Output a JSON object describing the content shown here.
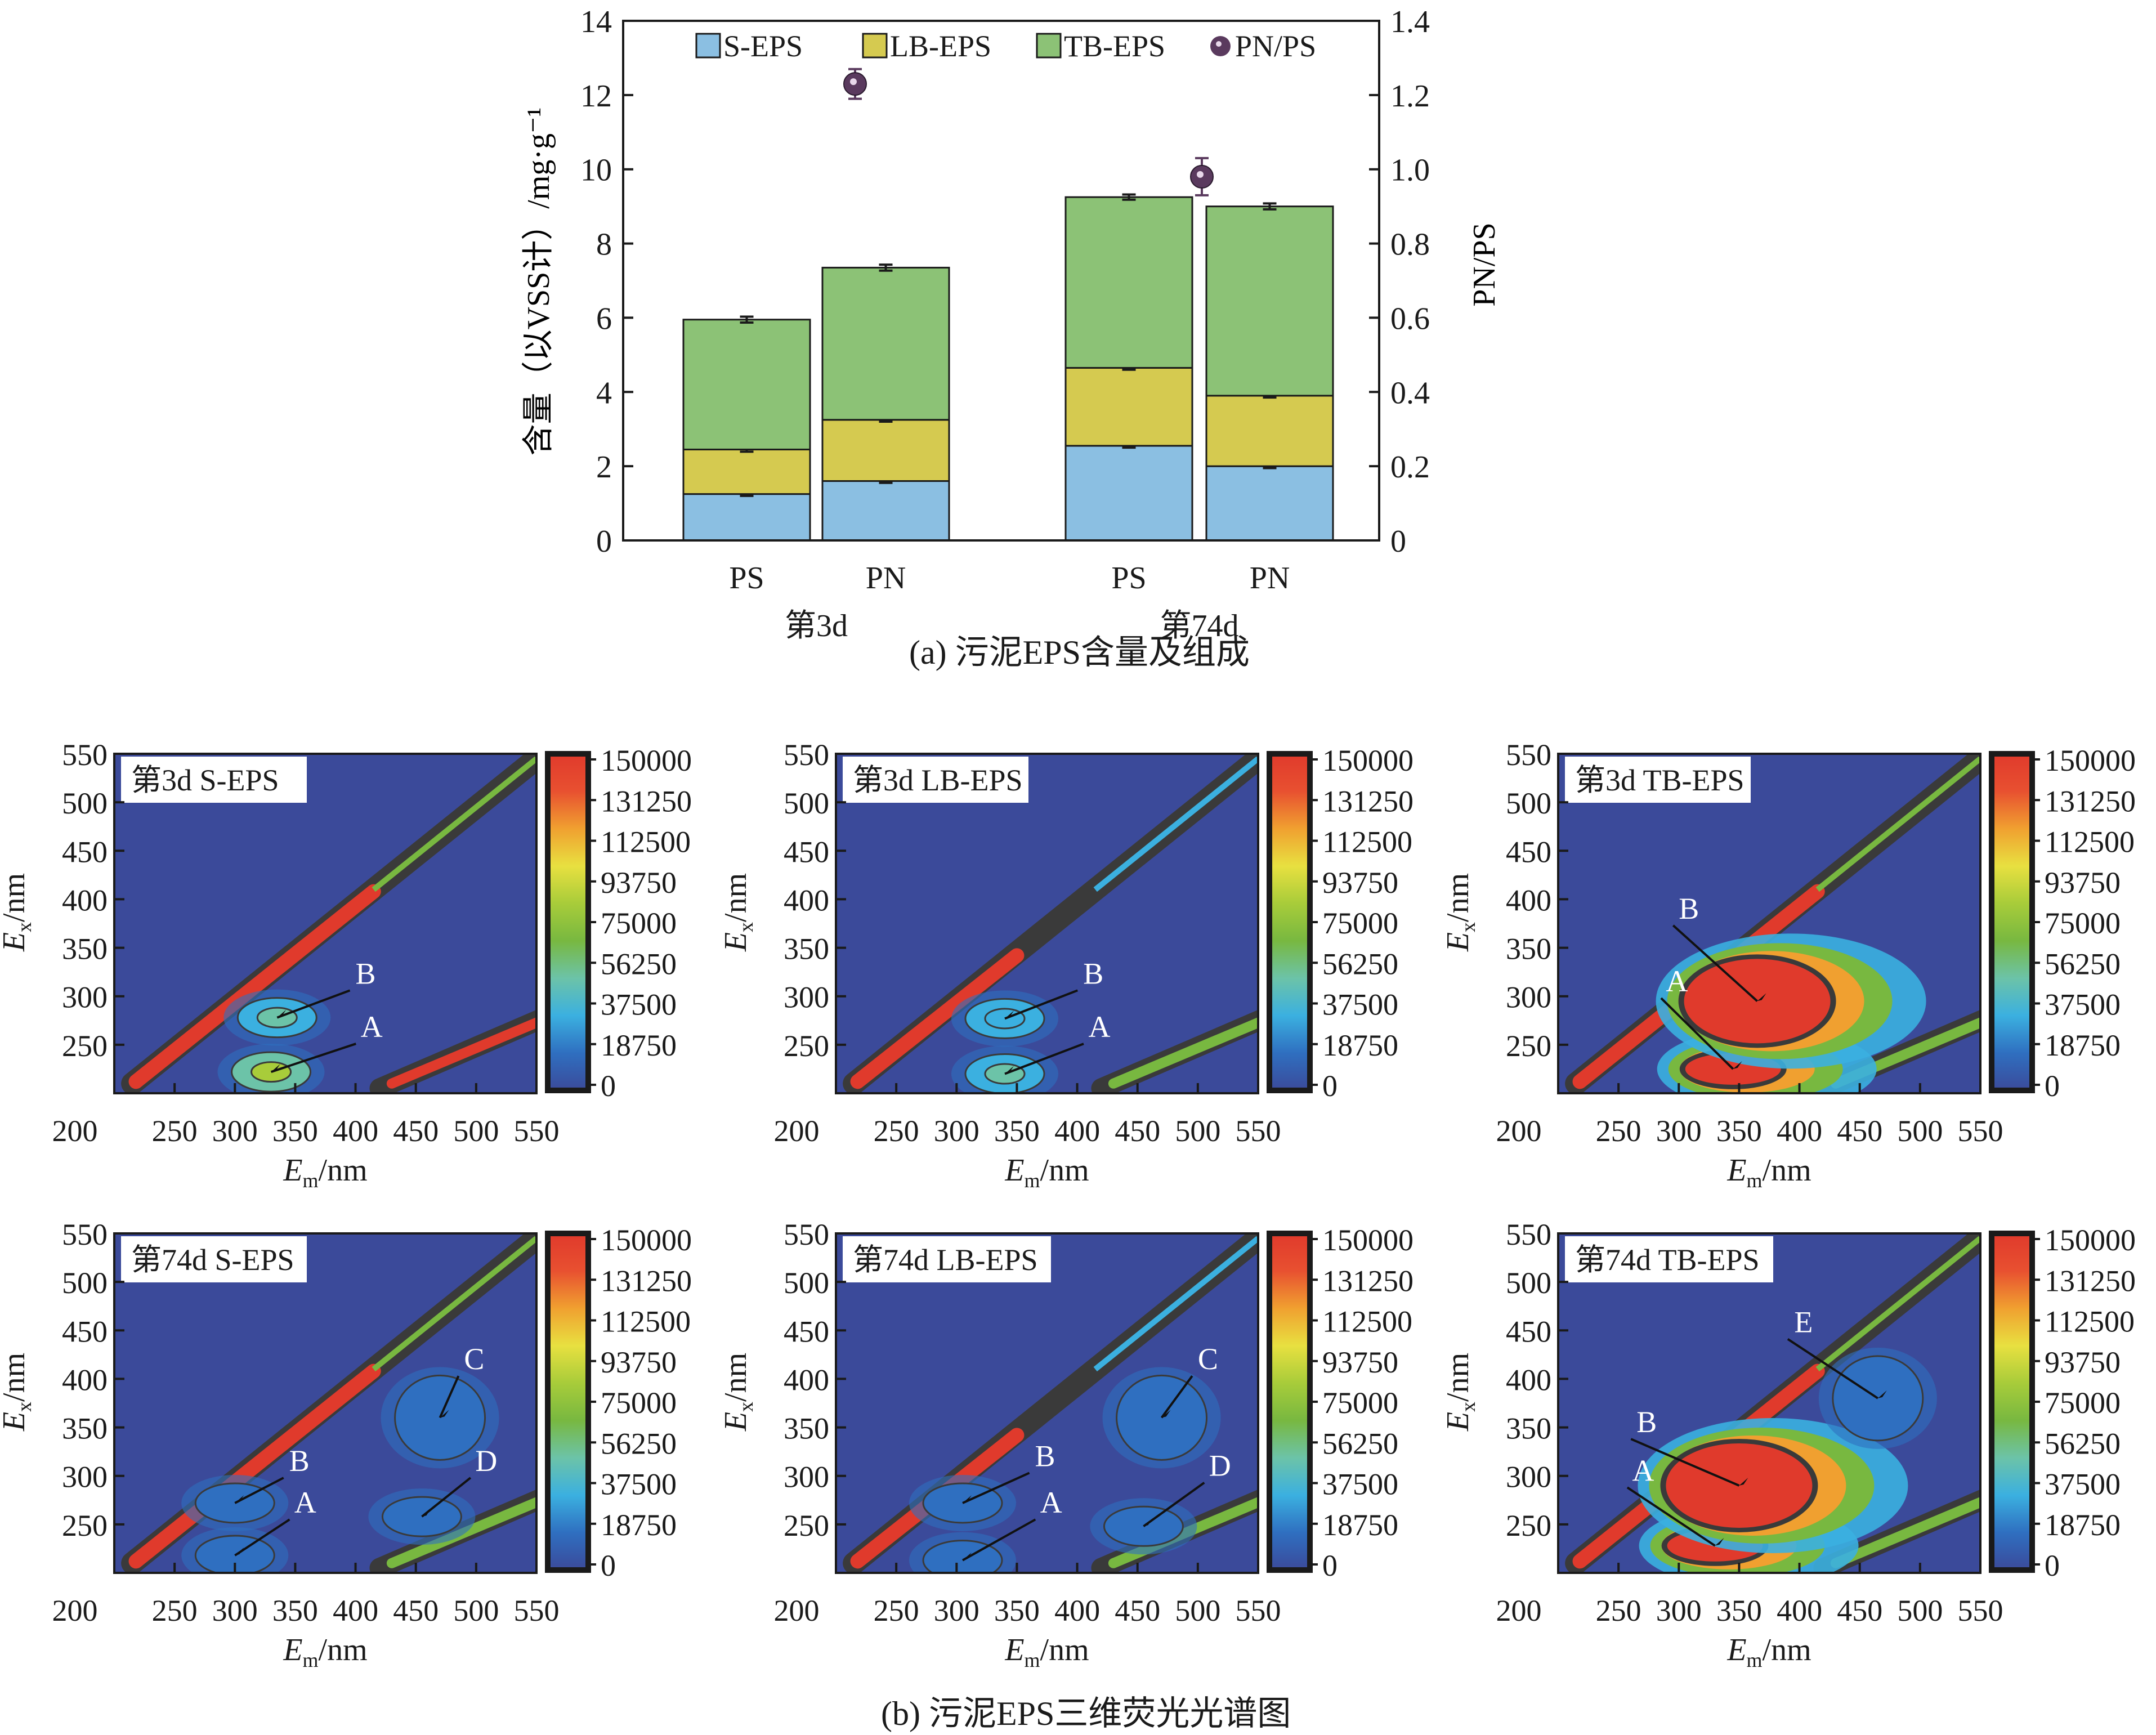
{
  "chart_data": [
    {
      "type": "bar",
      "stacked": true,
      "title": "",
      "caption": "(a) 污泥EPS含量及组成",
      "ylabel": "含量（以VSS计）/mg·g⁻¹",
      "ylabel_right": "PN/PS",
      "ylim": [
        0,
        14
      ],
      "ylim_right": [
        0,
        1.4
      ],
      "yticks": [
        "0",
        "2",
        "4",
        "6",
        "8",
        "10",
        "12",
        "14"
      ],
      "yticks_right": [
        "0",
        "0.2",
        "0.4",
        "0.6",
        "0.8",
        "1.0",
        "1.2",
        "1.4"
      ],
      "categories": [
        "PS",
        "PN",
        "PS",
        "PN"
      ],
      "groups": [
        {
          "label": "第3d",
          "categories": [
            "PS",
            "PN"
          ]
        },
        {
          "label": "第74d",
          "categories": [
            "PS",
            "PN"
          ]
        }
      ],
      "legend_position": "top",
      "series": [
        {
          "name": "S-EPS",
          "color": "#8bbfe2",
          "values": [
            1.25,
            1.6,
            2.55,
            2.0
          ],
          "errors": [
            0.05,
            0.05,
            0.05,
            0.05
          ]
        },
        {
          "name": "LB-EPS",
          "color": "#d5ca50",
          "values": [
            1.2,
            1.65,
            2.1,
            1.9
          ],
          "errors": [
            0.06,
            0.05,
            0.05,
            0.05
          ]
        },
        {
          "name": "TB-EPS",
          "color": "#8cc276",
          "values": [
            3.5,
            4.1,
            4.6,
            5.1
          ],
          "errors": [
            0.08,
            0.08,
            0.07,
            0.08
          ]
        }
      ],
      "scatter_series": {
        "name": "PN/PS",
        "color": "#5a3a5e",
        "axis": "right",
        "points": [
          {
            "group": "第3d",
            "value": 1.23,
            "error": 0.04
          },
          {
            "group": "第74d",
            "value": 0.98,
            "error": 0.05
          }
        ]
      }
    },
    {
      "type": "heatmap",
      "caption": "(b) 污泥EPS三维荧光光谱图",
      "xlabel": "Em/nm",
      "ylabel": "Ex/nm",
      "xlabel_main": "E",
      "xlabel_sub": "m",
      "ylabel_main": "E",
      "ylabel_sub": "x",
      "label_unit": "/nm",
      "xticks": [
        "200",
        "250",
        "300",
        "350",
        "400",
        "450",
        "500",
        "550"
      ],
      "yticks": [
        "250",
        "300",
        "350",
        "400",
        "450",
        "500",
        "550"
      ],
      "xlim": [
        200,
        550
      ],
      "ylim": [
        200,
        550
      ],
      "colorbar": {
        "ticks": [
          "150000",
          "131250",
          "112500",
          "93750",
          "75000",
          "56250",
          "37500",
          "18750",
          "0"
        ],
        "range": [
          0,
          150000
        ],
        "colors": [
          "#3b4a9a",
          "#2f6fc0",
          "#3bb0e0",
          "#6cc3a8",
          "#78b840",
          "#a8cc3a",
          "#e8e040",
          "#f0a030",
          "#e85030",
          "#e03a2c"
        ]
      },
      "panels": [
        {
          "title": "第3d S-EPS",
          "peaks": [
            {
              "label": "A",
              "em": 330,
              "ex": 222,
              "intensity": 75000,
              "label_em": 405,
              "label_ex": 258
            },
            {
              "label": "B",
              "em": 335,
              "ex": 278,
              "intensity": 45000,
              "label_em": 400,
              "label_ex": 313
            }
          ]
        },
        {
          "title": "第3d LB-EPS",
          "peaks": [
            {
              "label": "A",
              "em": 340,
              "ex": 220,
              "intensity": 50000,
              "label_em": 410,
              "label_ex": 258
            },
            {
              "label": "B",
              "em": 340,
              "ex": 277,
              "intensity": 40000,
              "label_em": 405,
              "label_ex": 313
            }
          ]
        },
        {
          "title": "第3d TB-EPS",
          "peaks": [
            {
              "label": "A",
              "em": 345,
              "ex": 225,
              "intensity": 150000,
              "label_em": 290,
              "label_ex": 305
            },
            {
              "label": "B",
              "em": 365,
              "ex": 295,
              "intensity": 150000,
              "label_em": 300,
              "label_ex": 380
            }
          ]
        },
        {
          "title": "第74d S-EPS",
          "peaks": [
            {
              "label": "A",
              "em": 300,
              "ex": 218,
              "intensity": 30000,
              "label_em": 350,
              "label_ex": 262
            },
            {
              "label": "B",
              "em": 300,
              "ex": 272,
              "intensity": 30000,
              "label_em": 345,
              "label_ex": 305
            },
            {
              "label": "C",
              "em": 470,
              "ex": 360,
              "intensity": 15000,
              "label_em": 490,
              "label_ex": 410
            },
            {
              "label": "D",
              "em": 455,
              "ex": 258,
              "intensity": 25000,
              "label_em": 500,
              "label_ex": 305
            }
          ]
        },
        {
          "title": "第74d LB-EPS",
          "peaks": [
            {
              "label": "A",
              "em": 305,
              "ex": 213,
              "intensity": 20000,
              "label_em": 370,
              "label_ex": 262
            },
            {
              "label": "B",
              "em": 305,
              "ex": 272,
              "intensity": 20000,
              "label_em": 365,
              "label_ex": 310
            },
            {
              "label": "C",
              "em": 470,
              "ex": 360,
              "intensity": 12000,
              "label_em": 500,
              "label_ex": 410
            },
            {
              "label": "D",
              "em": 455,
              "ex": 248,
              "intensity": 18000,
              "label_em": 510,
              "label_ex": 300
            }
          ]
        },
        {
          "title": "第74d TB-EPS",
          "peaks": [
            {
              "label": "A",
              "em": 330,
              "ex": 228,
              "intensity": 150000,
              "label_em": 262,
              "label_ex": 295
            },
            {
              "label": "B",
              "em": 350,
              "ex": 290,
              "intensity": 150000,
              "label_em": 265,
              "label_ex": 345
            },
            {
              "label": "E",
              "em": 465,
              "ex": 380,
              "intensity": 30000,
              "label_em": 395,
              "label_ex": 448
            }
          ]
        }
      ]
    }
  ]
}
